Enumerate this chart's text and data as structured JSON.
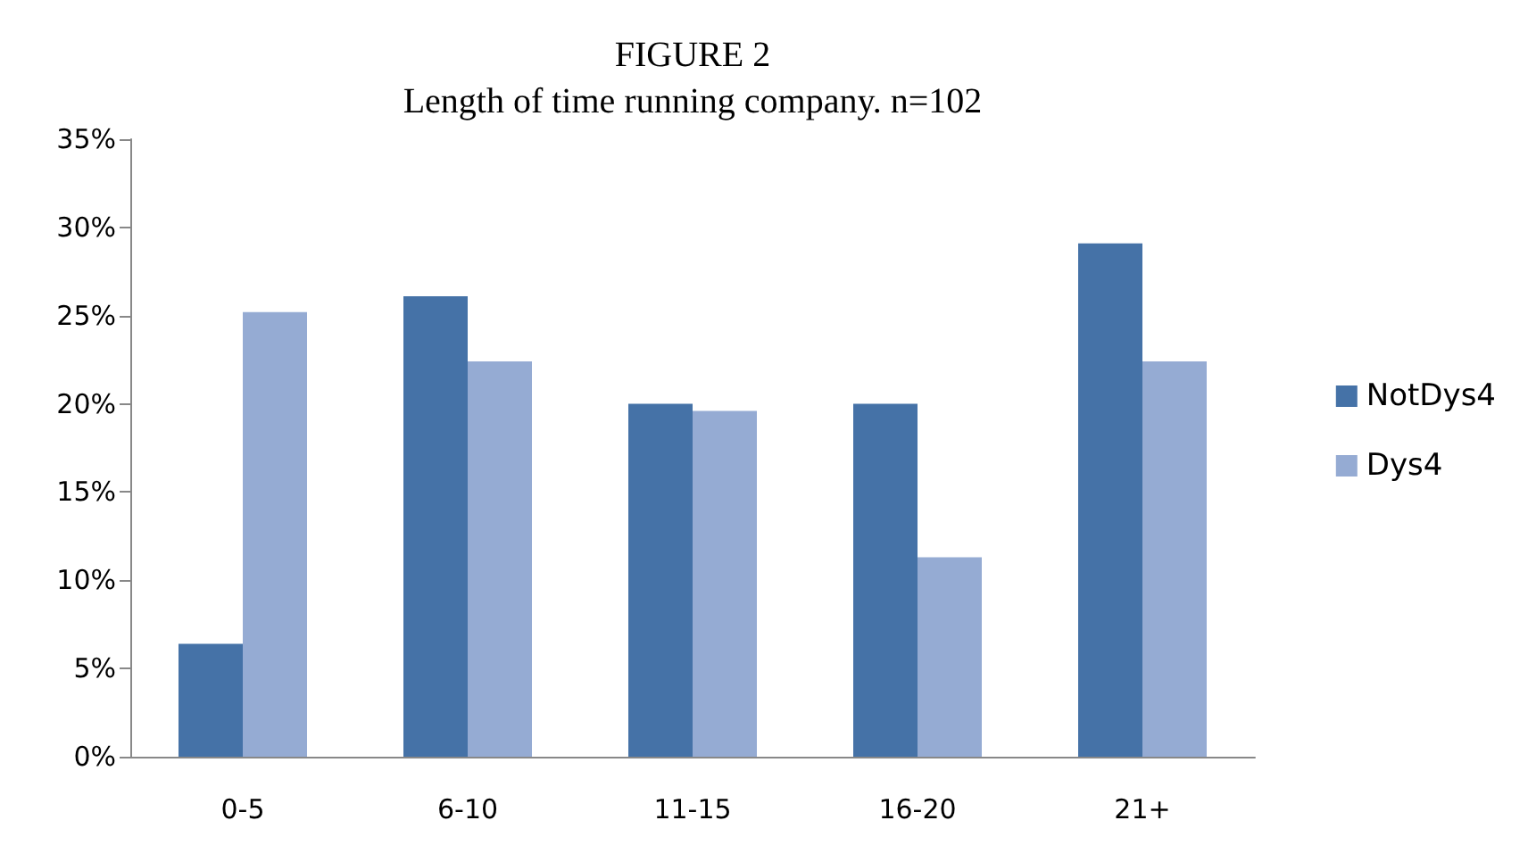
{
  "chart_data": {
    "type": "bar",
    "title": "FIGURE 2",
    "subtitle": "Length of time running company. n=102",
    "categories": [
      "0-5",
      "6-10",
      "11-15",
      "16-20",
      "21+"
    ],
    "series": [
      {
        "name": "NotDys4",
        "color": "#4572a7",
        "values": [
          6.4,
          26.1,
          20.0,
          20.0,
          29.1
        ]
      },
      {
        "name": "Dys4",
        "color": "#95abd3",
        "values": [
          25.2,
          22.4,
          19.6,
          11.3,
          22.4
        ]
      }
    ],
    "ylim": [
      0,
      35
    ],
    "yticks": [
      {
        "value": 0,
        "label": "0%"
      },
      {
        "value": 5,
        "label": "5%"
      },
      {
        "value": 10,
        "label": "10%"
      },
      {
        "value": 15,
        "label": "15%"
      },
      {
        "value": 20,
        "label": "20%"
      },
      {
        "value": 25,
        "label": "25%"
      },
      {
        "value": 30,
        "label": "30%"
      },
      {
        "value": 35,
        "label": "35%"
      }
    ],
    "grid": false,
    "legend": "right"
  }
}
